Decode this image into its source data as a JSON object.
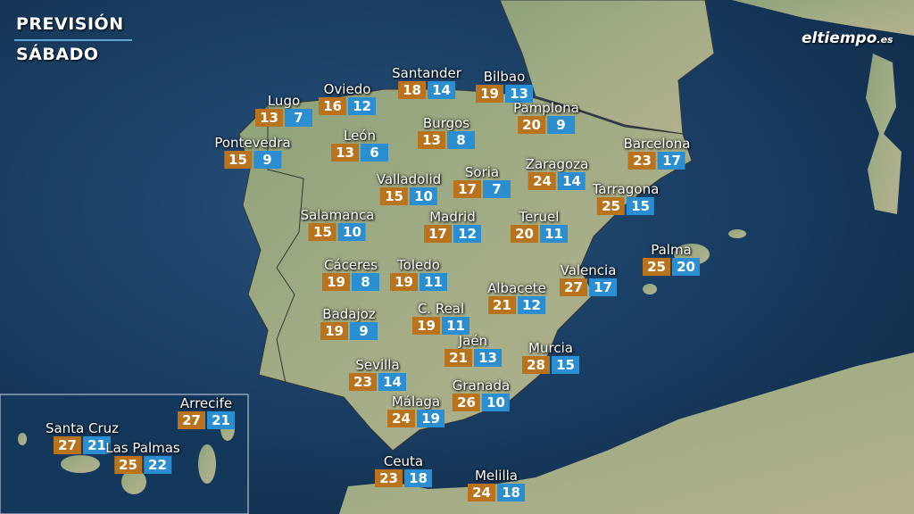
{
  "header": {
    "title": "PREVISIÓN",
    "subtitle": "SÁBADO"
  },
  "logo": {
    "name": "eltiempo",
    "suffix": ".es"
  },
  "cities": [
    {
      "name": "Lugo",
      "max": "13",
      "min": "7"
    },
    {
      "name": "Oviedo",
      "max": "16",
      "min": "12"
    },
    {
      "name": "Santander",
      "max": "18",
      "min": "14"
    },
    {
      "name": "Bilbao",
      "max": "19",
      "min": "13"
    },
    {
      "name": "Pamplona",
      "max": "20",
      "min": "9"
    },
    {
      "name": "Burgos",
      "max": "13",
      "min": "8"
    },
    {
      "name": "León",
      "max": "13",
      "min": "6"
    },
    {
      "name": "Pontevedra",
      "max": "15",
      "min": "9"
    },
    {
      "name": "Barcelona",
      "max": "23",
      "min": "17"
    },
    {
      "name": "Zaragoza",
      "max": "24",
      "min": "14"
    },
    {
      "name": "Valladolid",
      "max": "15",
      "min": "10"
    },
    {
      "name": "Soria",
      "max": "17",
      "min": "7"
    },
    {
      "name": "Tarragona",
      "max": "25",
      "min": "15"
    },
    {
      "name": "Salamanca",
      "max": "15",
      "min": "10"
    },
    {
      "name": "Madrid",
      "max": "17",
      "min": "12"
    },
    {
      "name": "Teruel",
      "max": "20",
      "min": "11"
    },
    {
      "name": "Palma",
      "max": "25",
      "min": "20"
    },
    {
      "name": "Cáceres",
      "max": "19",
      "min": "8"
    },
    {
      "name": "Toledo",
      "max": "19",
      "min": "11"
    },
    {
      "name": "Valencia",
      "max": "27",
      "min": "17"
    },
    {
      "name": "Albacete",
      "max": "21",
      "min": "12"
    },
    {
      "name": "Badajoz",
      "max": "19",
      "min": "9"
    },
    {
      "name": "C. Real",
      "max": "19",
      "min": "11"
    },
    {
      "name": "Jaén",
      "max": "21",
      "min": "13"
    },
    {
      "name": "Murcia",
      "max": "28",
      "min": "15"
    },
    {
      "name": "Sevilla",
      "max": "23",
      "min": "14"
    },
    {
      "name": "Granada",
      "max": "26",
      "min": "10"
    },
    {
      "name": "Málaga",
      "max": "24",
      "min": "19"
    },
    {
      "name": "Arrecife",
      "max": "27",
      "min": "21"
    },
    {
      "name": "Santa Cruz",
      "max": "27",
      "min": "21"
    },
    {
      "name": "Las Palmas",
      "max": "25",
      "min": "22"
    },
    {
      "name": "Ceuta",
      "max": "23",
      "min": "18"
    },
    {
      "name": "Melilla",
      "max": "24",
      "min": "18"
    }
  ]
}
